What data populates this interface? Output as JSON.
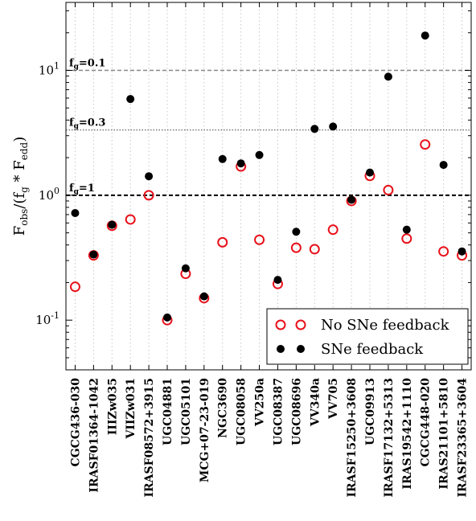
{
  "chart_data": {
    "type": "scatter",
    "ylabel": "F_obs/(f_g * F_edd)",
    "yscale": "log",
    "ylim": [
      0.04,
      35
    ],
    "yticks": [
      {
        "value": 10,
        "base": "10",
        "exp": "1"
      },
      {
        "value": 1,
        "base": "10",
        "exp": "0"
      },
      {
        "value": 0.1,
        "base": "10",
        "exp": "-1"
      }
    ],
    "grid": "vertical-dotted",
    "legend_position": "bottom-right",
    "categories": [
      "CGCG436-030",
      "IRASF01364-1042",
      "IIIZw035",
      "VIIZw031",
      "IRASF08572+3915",
      "UGC04881",
      "UGC05101",
      "MCG+07-23-019",
      "NGC3690",
      "UGC08058",
      "VV250a",
      "UGC08387",
      "UGC08696",
      "VV340a",
      "VV705",
      "IRASF15250+3608",
      "UGC09913",
      "IRASF17132+5313",
      "IRAS19542+1110",
      "CGCG448-020",
      "IRAS21101+5810",
      "IRASF23365+3604"
    ],
    "series": [
      {
        "name": "No SNe feedback",
        "marker": "open-circle",
        "color": "#e8111a",
        "values": [
          0.185,
          0.33,
          0.57,
          0.64,
          1.0,
          0.1,
          0.235,
          0.15,
          0.42,
          1.7,
          0.44,
          0.195,
          0.38,
          0.37,
          0.53,
          0.9,
          1.43,
          1.1,
          0.45,
          2.55,
          0.355,
          0.33
        ]
      },
      {
        "name": "SNe feedback",
        "marker": "filled-circle",
        "color": "#000000",
        "values": [
          0.72,
          0.335,
          0.58,
          5.9,
          1.42,
          0.105,
          0.26,
          0.155,
          1.95,
          1.8,
          2.1,
          0.21,
          0.51,
          3.4,
          3.55,
          0.92,
          1.52,
          8.9,
          0.53,
          19.0,
          1.75,
          0.355
        ]
      }
    ],
    "reference_lines": [
      {
        "value": 10,
        "label": "f_g=0.1",
        "style": "dashed",
        "color": "#888888"
      },
      {
        "value": 3.3333,
        "label": "f_g=0.3",
        "style": "dotted",
        "color": "#777777"
      },
      {
        "value": 1,
        "label": "f_g=1",
        "style": "dashed",
        "color": "#000000"
      }
    ]
  }
}
